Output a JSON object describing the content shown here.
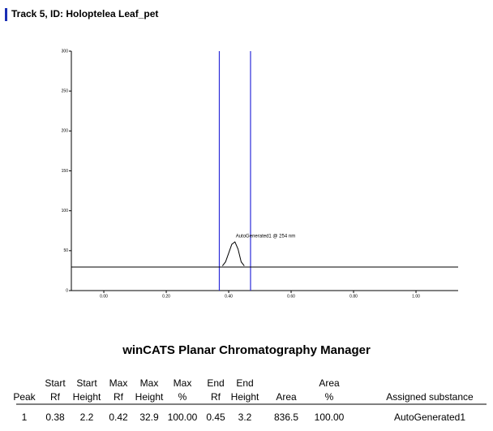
{
  "header": {
    "title": "Track 5, ID: Holoptelea Leaf_pet"
  },
  "chart_data": {
    "type": "line",
    "xlim": [
      -0.104,
      1.135
    ],
    "ylim": [
      0,
      300
    ],
    "yticks": [
      0,
      50,
      100,
      150,
      200,
      250,
      300
    ],
    "xticks": [
      {
        "value": 0,
        "label": "0.00"
      },
      {
        "value": 0.2,
        "label": "0.20"
      },
      {
        "value": 0.4,
        "label": "0.40"
      },
      {
        "value": 0.6,
        "label": "0.60"
      },
      {
        "value": 0.8,
        "label": "0.80"
      },
      {
        "value": 1.0,
        "label": "1.00"
      }
    ],
    "series": [
      {
        "color": "#000000",
        "x": [
          -0.104,
          1.135
        ],
        "values": [
          29.5,
          29.5
        ]
      },
      {
        "color": "#000000",
        "x": [
          0.38,
          0.39,
          0.4,
          0.41,
          0.42,
          0.43,
          0.44,
          0.45
        ],
        "values": [
          31,
          36,
          47,
          58,
          61,
          52,
          36,
          31
        ]
      }
    ],
    "vlines": {
      "color": "#2b2bd9",
      "values": [
        0.37,
        0.47
      ]
    },
    "annotation": "AutoGenerated1 @ 254 nm"
  },
  "table": {
    "title": "winCATS Planar Chromatography Manager",
    "columns": [
      [
        "Peak"
      ],
      [
        "Start",
        "Rf"
      ],
      [
        "Start",
        "Height"
      ],
      [
        "Max",
        "Rf"
      ],
      [
        "Max",
        "Height"
      ],
      [
        "Max",
        "%"
      ],
      [
        "End",
        "Rf"
      ],
      [
        "End",
        "Height"
      ],
      [
        "Area"
      ],
      [
        "Area",
        "%"
      ],
      [
        "Assigned substance"
      ]
    ],
    "rows": [
      [
        "1",
        "0.38",
        "2.2",
        "0.42",
        "32.9",
        "100.00",
        "0.45",
        "3.2",
        "836.5",
        "100.00",
        "AutoGenerated1"
      ]
    ]
  }
}
